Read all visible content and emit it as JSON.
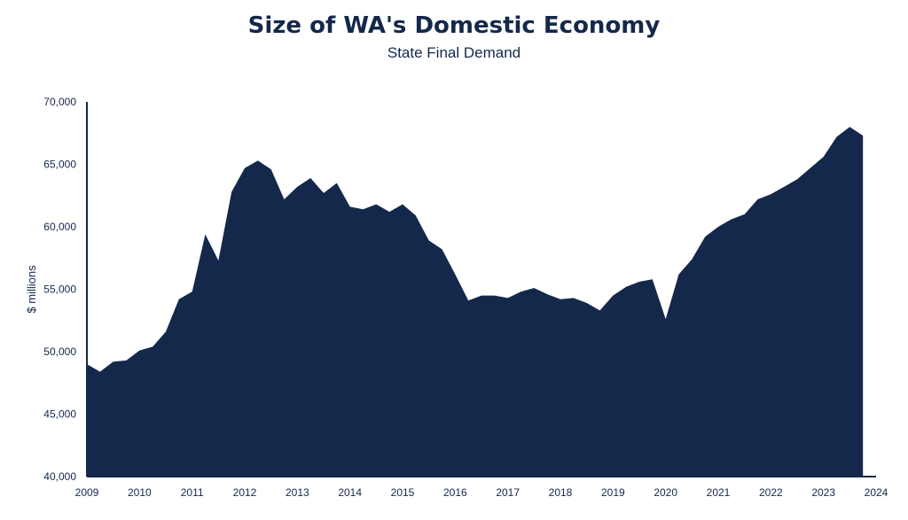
{
  "chart_data": {
    "type": "area",
    "title": "Size of WA's Domestic Economy",
    "subtitle": "State Final Demand",
    "xlabel": "",
    "ylabel": "$ millions",
    "ylim": [
      40000,
      70000
    ],
    "yticks": [
      40000,
      45000,
      50000,
      55000,
      60000,
      65000,
      70000
    ],
    "ytick_labels": [
      "40,000",
      "45,000",
      "50,000",
      "55,000",
      "60,000",
      "65,000",
      "70,000"
    ],
    "xlim": [
      2009,
      2024
    ],
    "xticks": [
      "2009",
      "2010",
      "2011",
      "2012",
      "2013",
      "2014",
      "2015",
      "2016",
      "2017",
      "2018",
      "2019",
      "2020",
      "2021",
      "2022",
      "2023",
      "2024"
    ],
    "grid": false,
    "legend": "none",
    "fill_color": "#14284b",
    "x": [
      2009.0,
      2009.25,
      2009.5,
      2009.75,
      2010.0,
      2010.25,
      2010.5,
      2010.75,
      2011.0,
      2011.25,
      2011.5,
      2011.75,
      2012.0,
      2012.25,
      2012.5,
      2012.75,
      2013.0,
      2013.25,
      2013.5,
      2013.75,
      2014.0,
      2014.25,
      2014.5,
      2014.75,
      2015.0,
      2015.25,
      2015.5,
      2015.75,
      2016.0,
      2016.25,
      2016.5,
      2016.75,
      2017.0,
      2017.25,
      2017.5,
      2017.75,
      2018.0,
      2018.25,
      2018.5,
      2018.75,
      2019.0,
      2019.25,
      2019.5,
      2019.75,
      2020.0,
      2020.25,
      2020.5,
      2020.75,
      2021.0,
      2021.25,
      2021.5,
      2021.75,
      2022.0,
      2022.25,
      2022.5,
      2022.75,
      2023.0,
      2023.25,
      2023.5,
      2023.75
    ],
    "values": [
      49000,
      48400,
      49200,
      49300,
      50100,
      50400,
      51600,
      54200,
      54800,
      59400,
      57300,
      62800,
      64700,
      65300,
      64600,
      62200,
      63200,
      63900,
      62700,
      63500,
      61600,
      61400,
      61800,
      61200,
      61800,
      60900,
      58900,
      58200,
      56200,
      54100,
      54500,
      54500,
      54300,
      54800,
      55100,
      54600,
      54200,
      54300,
      53900,
      53300,
      54500,
      55200,
      55600,
      55800,
      52600,
      56200,
      57400,
      59200,
      60000,
      60600,
      61000,
      62200,
      62600,
      63200,
      63800,
      64700,
      65600,
      67200,
      68000,
      67300
    ]
  }
}
